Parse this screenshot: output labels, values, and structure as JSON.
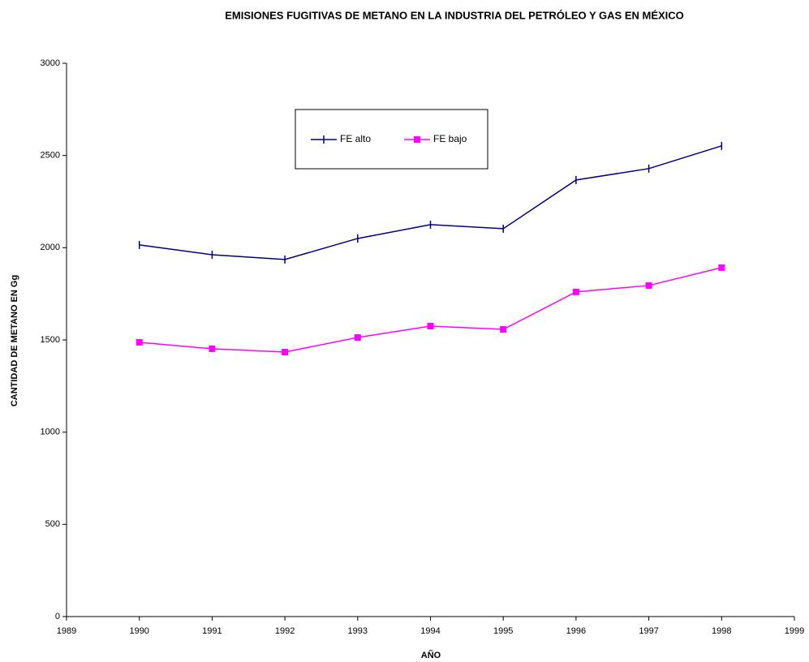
{
  "chart_data": {
    "type": "line",
    "title": "EMISIONES FUGITIVAS DE METANO EN LA INDUSTRIA DEL PETRÓLEO Y GAS EN MÉXICO",
    "xlabel": "AÑO",
    "ylabel": "CANTIDAD DE METANO EN Gg",
    "x": [
      1990,
      1991,
      1992,
      1993,
      1994,
      1995,
      1996,
      1997,
      1998
    ],
    "series": [
      {
        "name": "FE alto",
        "color": "#000080",
        "marker": "tick",
        "values": [
          2015,
          1962,
          1936,
          2050,
          2125,
          2103,
          2367,
          2429,
          2552
        ]
      },
      {
        "name": "FE bajo",
        "color": "#ff00ff",
        "marker": "square",
        "values": [
          1487,
          1452,
          1434,
          1513,
          1575,
          1557,
          1760,
          1795,
          1892
        ]
      }
    ],
    "xlim": [
      1989,
      1999
    ],
    "xticks": [
      1989,
      1990,
      1991,
      1992,
      1993,
      1994,
      1995,
      1996,
      1997,
      1998,
      1999
    ],
    "ylim": [
      0,
      3000
    ],
    "yticks": [
      0,
      500,
      1000,
      1500,
      2000,
      2500,
      3000
    ],
    "grid": false
  }
}
